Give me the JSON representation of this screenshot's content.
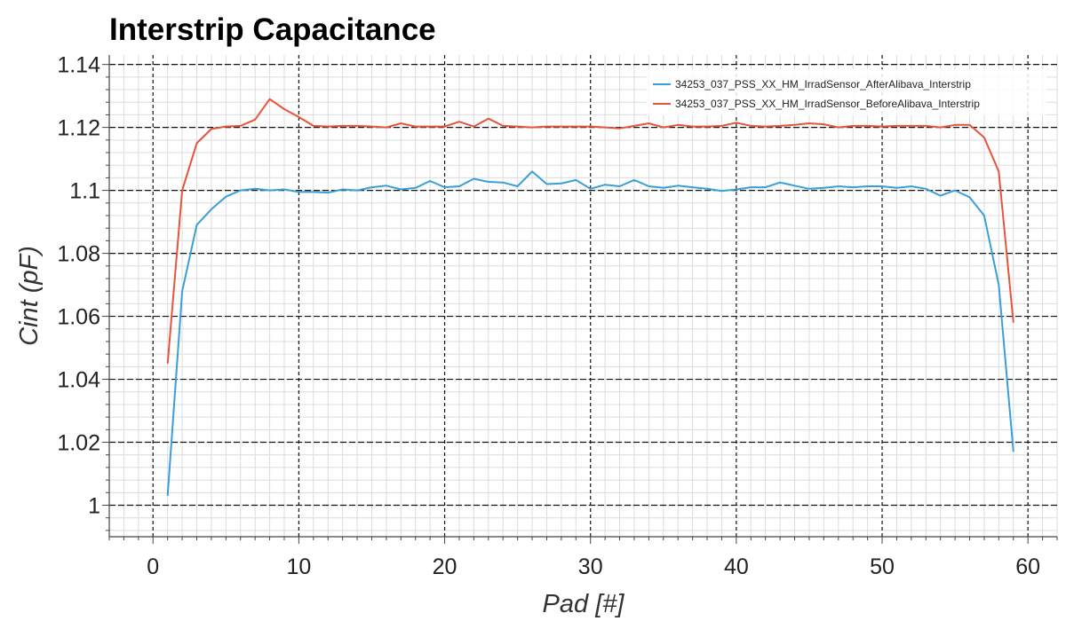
{
  "chart_data": {
    "type": "line",
    "title": "Interstrip Capacitance",
    "xlabel": "Pad [#]",
    "ylabel": "Cint (pF)",
    "xlim": [
      -3,
      62
    ],
    "ylim": [
      0.99,
      1.143
    ],
    "xticks": [
      0,
      10,
      20,
      30,
      40,
      50,
      60
    ],
    "xtick_labels": [
      "0",
      "10",
      "20",
      "30",
      "40",
      "50",
      "60"
    ],
    "yticks": [
      1.0,
      1.02,
      1.04,
      1.06,
      1.08,
      1.1,
      1.12,
      1.14
    ],
    "ytick_labels": [
      "1",
      "1.02",
      "1.04",
      "1.06",
      "1.08",
      "1.1",
      "1.12",
      "1.14"
    ],
    "grid": true,
    "legend_position": "top-right",
    "x": [
      1,
      2,
      3,
      4,
      5,
      6,
      7,
      8,
      9,
      10,
      11,
      12,
      13,
      14,
      15,
      16,
      17,
      18,
      19,
      20,
      21,
      22,
      23,
      24,
      25,
      26,
      27,
      28,
      29,
      30,
      31,
      32,
      33,
      34,
      35,
      36,
      37,
      38,
      39,
      40,
      41,
      42,
      43,
      44,
      45,
      46,
      47,
      48,
      49,
      50,
      51,
      52,
      53,
      54,
      55,
      56,
      57,
      58,
      59
    ],
    "series": [
      {
        "name": "34253_037_PSS_XX_HM_IrradSensor_AfterAlibava_Interstrip",
        "color": "#3a9fd6",
        "values": [
          1.003,
          1.068,
          1.089,
          1.094,
          1.098,
          1.1,
          1.1005,
          1.1,
          1.1003,
          1.0995,
          1.0995,
          1.0993,
          1.1003,
          1.1,
          1.101,
          1.1015,
          1.1003,
          1.1008,
          1.103,
          1.101,
          1.1013,
          1.1037,
          1.1027,
          1.1025,
          1.1013,
          1.106,
          1.102,
          1.1022,
          1.1033,
          1.1005,
          1.1018,
          1.1013,
          1.1033,
          1.1013,
          1.1008,
          1.1015,
          1.101,
          1.1005,
          1.0998,
          1.1003,
          1.101,
          1.101,
          1.1025,
          1.1015,
          1.1005,
          1.1008,
          1.1013,
          1.101,
          1.1013,
          1.1013,
          1.1008,
          1.1013,
          1.1005,
          1.0983,
          1.1,
          1.0978,
          1.092,
          1.07,
          1.017
        ]
      },
      {
        "name": "34253_037_PSS_XX_HM_IrradSensor_BeforeAlibava_Interstrip",
        "color": "#e8543a",
        "values": [
          1.045,
          1.1,
          1.115,
          1.1195,
          1.1203,
          1.1205,
          1.1225,
          1.129,
          1.1258,
          1.1233,
          1.1205,
          1.1203,
          1.1205,
          1.1205,
          1.1203,
          1.12,
          1.1213,
          1.1203,
          1.1203,
          1.1203,
          1.1218,
          1.1203,
          1.1228,
          1.1205,
          1.1203,
          1.12,
          1.1203,
          1.1203,
          1.1203,
          1.1203,
          1.12,
          1.1197,
          1.1205,
          1.1213,
          1.12,
          1.1208,
          1.1203,
          1.1203,
          1.1205,
          1.1215,
          1.1205,
          1.1203,
          1.1205,
          1.1208,
          1.1213,
          1.121,
          1.12,
          1.1205,
          1.1205,
          1.1203,
          1.1205,
          1.1205,
          1.1205,
          1.12,
          1.1208,
          1.1208,
          1.1168,
          1.106,
          1.058
        ]
      }
    ]
  }
}
